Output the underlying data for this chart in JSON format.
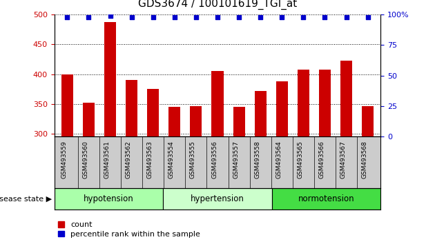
{
  "title": "GDS3674 / 100101619_TGI_at",
  "categories": [
    "GSM493559",
    "GSM493560",
    "GSM493561",
    "GSM493562",
    "GSM493563",
    "GSM493554",
    "GSM493555",
    "GSM493556",
    "GSM493557",
    "GSM493558",
    "GSM493564",
    "GSM493565",
    "GSM493566",
    "GSM493567",
    "GSM493568"
  ],
  "bar_values": [
    400,
    352,
    488,
    390,
    375,
    345,
    346,
    405,
    345,
    372,
    388,
    408,
    408,
    423,
    346
  ],
  "percentile_values": [
    98,
    98,
    99,
    98,
    98,
    98,
    98,
    98,
    98,
    98,
    98,
    98,
    98,
    98,
    98
  ],
  "bar_color": "#cc0000",
  "percentile_color": "#0000cc",
  "ylim_left": [
    295,
    500
  ],
  "ylim_right": [
    0,
    100
  ],
  "yticks_left": [
    300,
    350,
    400,
    450,
    500
  ],
  "yticks_right": [
    0,
    25,
    50,
    75,
    100
  ],
  "groups": [
    {
      "label": "hypotension",
      "start": 0,
      "end": 5,
      "color": "#aaffaa"
    },
    {
      "label": "hypertension",
      "start": 5,
      "end": 10,
      "color": "#ccffcc"
    },
    {
      "label": "normotension",
      "start": 10,
      "end": 15,
      "color": "#44dd44"
    }
  ],
  "disease_state_label": "disease state",
  "legend_count_label": "count",
  "legend_percentile_label": "percentile rank within the sample",
  "background_color": "#ffffff",
  "tick_label_color_left": "#cc0000",
  "tick_label_color_right": "#0000cc",
  "bar_width": 0.55,
  "xticklabel_gray": "#cccccc",
  "title_fontsize": 11
}
